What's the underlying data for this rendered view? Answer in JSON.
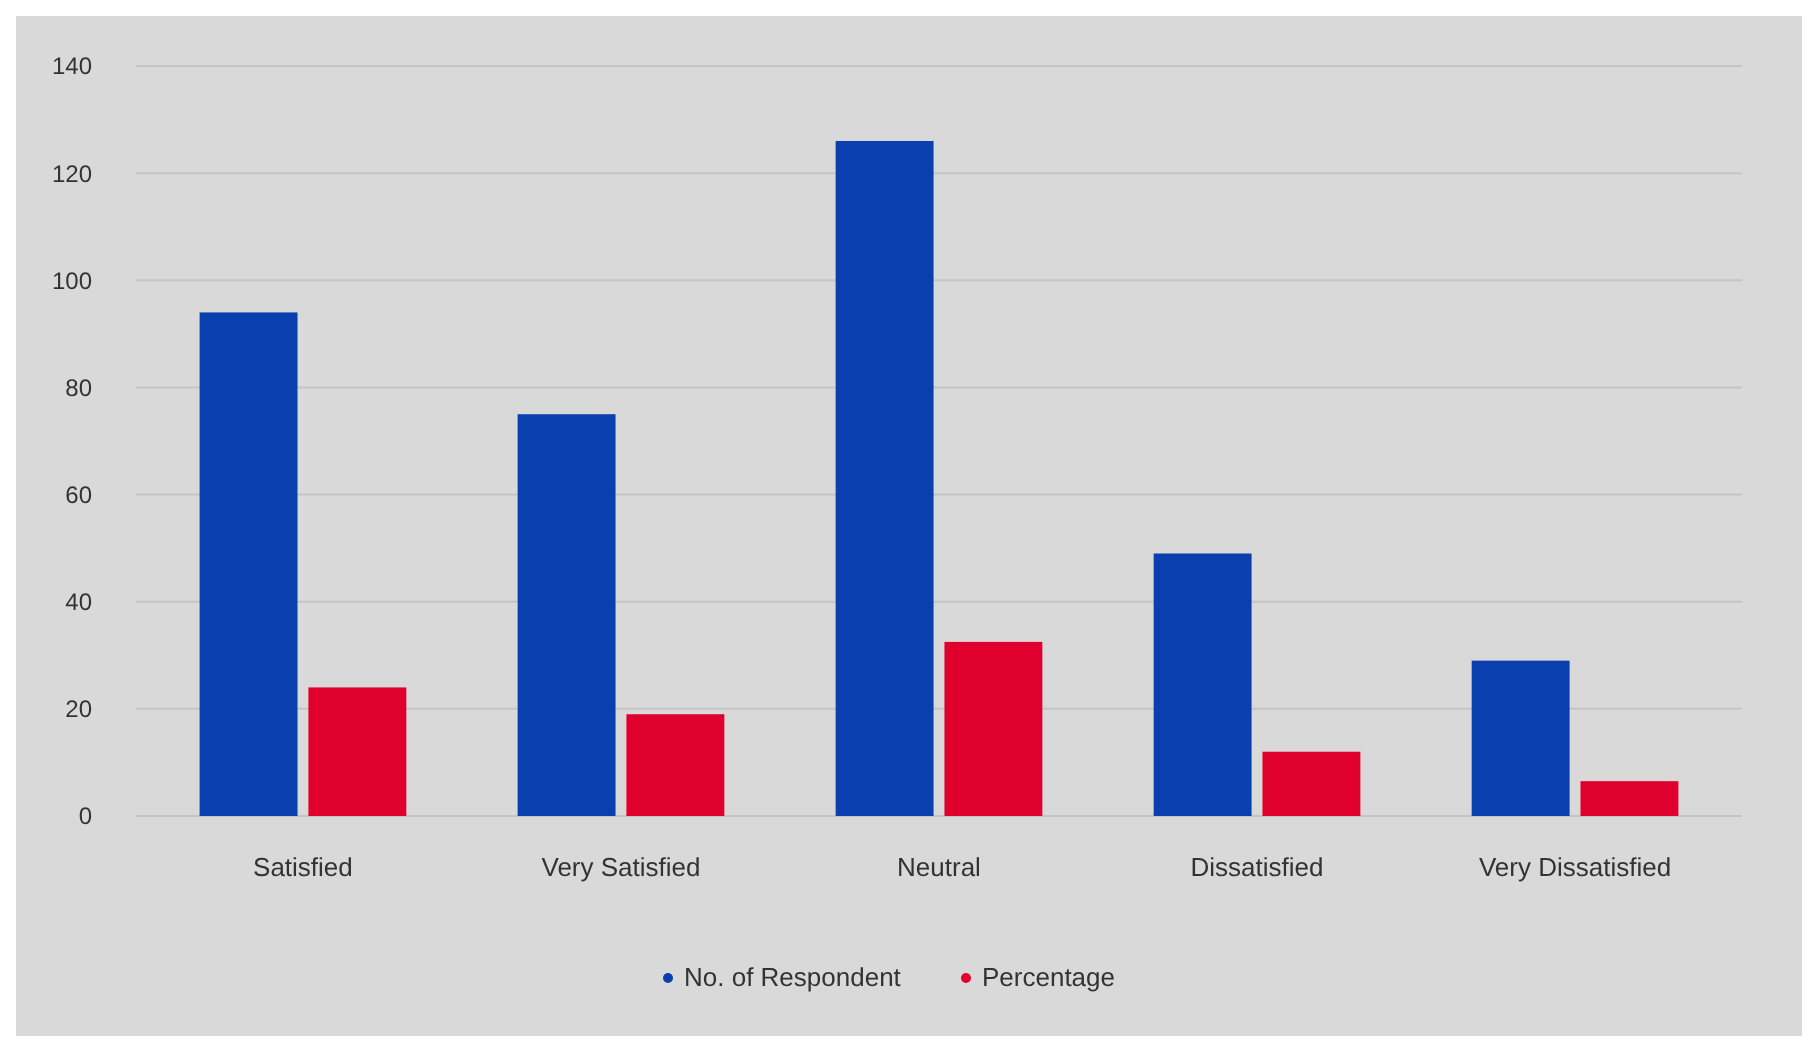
{
  "chart_data": {
    "type": "bar",
    "categories": [
      "Satisfied",
      "Very Satisfied",
      "Neutral",
      "Dissatisfied",
      "Very Dissatisfied"
    ],
    "series": [
      {
        "name": "No. of Respondent",
        "color": "#0a3fb0",
        "values": [
          94,
          75,
          126,
          49,
          29
        ]
      },
      {
        "name": "Percentage",
        "color": "#e0002e",
        "values": [
          24,
          19,
          32.5,
          12,
          6.5
        ]
      }
    ],
    "ylim": [
      0,
      140
    ],
    "yticks": [
      0,
      20,
      40,
      60,
      80,
      100,
      120,
      140
    ],
    "grid": "y",
    "legend": "bottom"
  }
}
